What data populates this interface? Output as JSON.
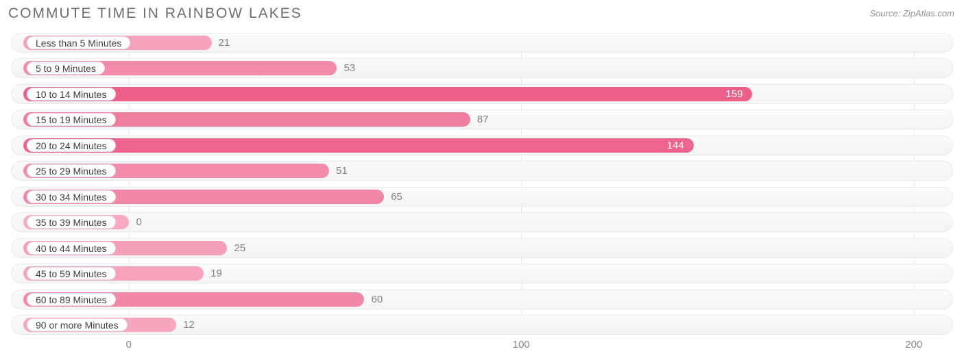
{
  "chart": {
    "type": "bar-horizontal",
    "title": "COMMUTE TIME IN RAINBOW LAKES",
    "source": "Source: ZipAtlas.com",
    "title_color": "#6e6e6e",
    "title_fontsize": 21,
    "source_color": "#929292",
    "background_color": "#ffffff",
    "track_border_color": "#e9e9e9",
    "grid_color": "#e9e9e9",
    "label_text_color": "#404040",
    "tick_color": "#888888",
    "value_inside_color": "#ffffff",
    "value_outside_color": "#808080",
    "x_domain_min": -30,
    "x_domain_max": 210,
    "x_ticks": [
      0,
      100,
      200
    ],
    "label_origin_value": -27,
    "value_threshold_inside": 120,
    "categories": [
      {
        "label": "Less than 5 Minutes",
        "value": 21,
        "color": "#f5a2bb"
      },
      {
        "label": "5 to 9 Minutes",
        "value": 53,
        "color": "#f28ba9"
      },
      {
        "label": "10 to 14 Minutes",
        "value": 159,
        "color": "#ec5f89"
      },
      {
        "label": "15 to 19 Minutes",
        "value": 87,
        "color": "#f07c9e"
      },
      {
        "label": "20 to 24 Minutes",
        "value": 144,
        "color": "#ed658e"
      },
      {
        "label": "25 to 29 Minutes",
        "value": 51,
        "color": "#f28caa"
      },
      {
        "label": "30 to 34 Minutes",
        "value": 65,
        "color": "#f186a5"
      },
      {
        "label": "35 to 39 Minutes",
        "value": 0,
        "color": "#f7abc1"
      },
      {
        "label": "40 to 44 Minutes",
        "value": 25,
        "color": "#f5a0b9"
      },
      {
        "label": "45 to 59 Minutes",
        "value": 19,
        "color": "#f6a3bb"
      },
      {
        "label": "60 to 89 Minutes",
        "value": 60,
        "color": "#f288a7"
      },
      {
        "label": "90 or more Minutes",
        "value": 12,
        "color": "#f6a6bd"
      }
    ]
  }
}
